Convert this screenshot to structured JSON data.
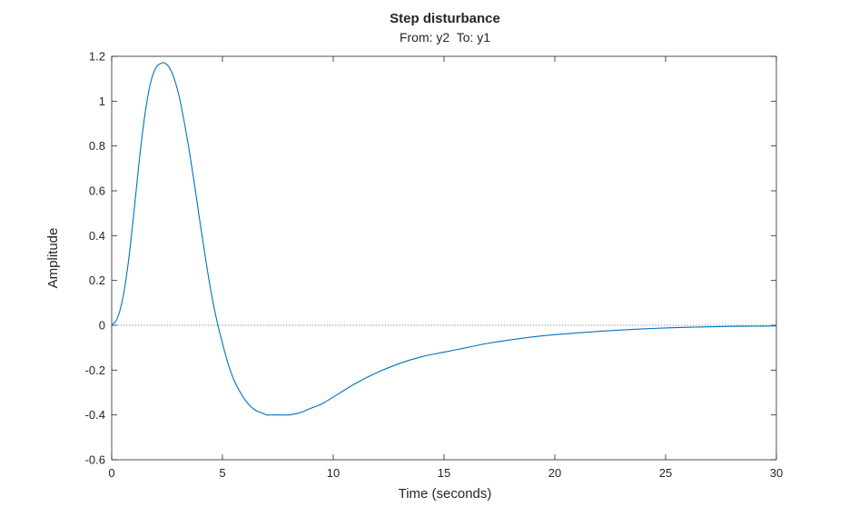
{
  "chart_data": {
    "type": "line",
    "title": "Step disturbance",
    "subtitle": "From: y2  To: y1",
    "xlabel": "Time (seconds)",
    "ylabel": "Amplitude",
    "xlim": [
      0,
      30
    ],
    "ylim": [
      -0.6,
      1.2
    ],
    "xticks": [
      0,
      5,
      10,
      15,
      20,
      25,
      30
    ],
    "xtick_labels": [
      "0",
      "5",
      "10",
      "15",
      "20",
      "25",
      "30"
    ],
    "yticks": [
      -0.6,
      -0.4,
      -0.2,
      0,
      0.2,
      0.4,
      0.6,
      0.8,
      1,
      1.2
    ],
    "ytick_labels": [
      "-0.6",
      "-0.4",
      "-0.2",
      "0",
      "0.2",
      "0.4",
      "0.6",
      "0.8",
      "1",
      "1.2"
    ],
    "grid": false,
    "reference_line": {
      "y": 0,
      "style": "dotted"
    },
    "series": [
      {
        "color": "#0072BD",
        "x": [
          0,
          0.25,
          0.5,
          0.75,
          1,
          1.25,
          1.5,
          1.75,
          2,
          2.25,
          2.4,
          2.6,
          2.75,
          3,
          3.25,
          3.5,
          3.75,
          4,
          4.25,
          4.5,
          4.75,
          5,
          5.25,
          5.5,
          5.75,
          6,
          6.25,
          6.5,
          6.75,
          7,
          7.25,
          7.5,
          7.75,
          8,
          8.5,
          9,
          9.5,
          10,
          11,
          12,
          13,
          14,
          15,
          16,
          17,
          18,
          19,
          20,
          21,
          22,
          23,
          24,
          25,
          26,
          27,
          28,
          29,
          30
        ],
        "y": [
          0,
          0.03,
          0.12,
          0.28,
          0.5,
          0.74,
          0.94,
          1.08,
          1.15,
          1.17,
          1.17,
          1.15,
          1.12,
          1.04,
          0.92,
          0.78,
          0.62,
          0.45,
          0.29,
          0.14,
          0.02,
          -0.08,
          -0.17,
          -0.24,
          -0.29,
          -0.33,
          -0.36,
          -0.38,
          -0.39,
          -0.4,
          -0.4,
          -0.4,
          -0.4,
          -0.4,
          -0.39,
          -0.37,
          -0.35,
          -0.32,
          -0.26,
          -0.21,
          -0.17,
          -0.14,
          -0.12,
          -0.1,
          -0.08,
          -0.065,
          -0.052,
          -0.042,
          -0.034,
          -0.027,
          -0.021,
          -0.016,
          -0.012,
          -0.009,
          -0.007,
          -0.005,
          -0.004,
          -0.003
        ]
      }
    ]
  }
}
